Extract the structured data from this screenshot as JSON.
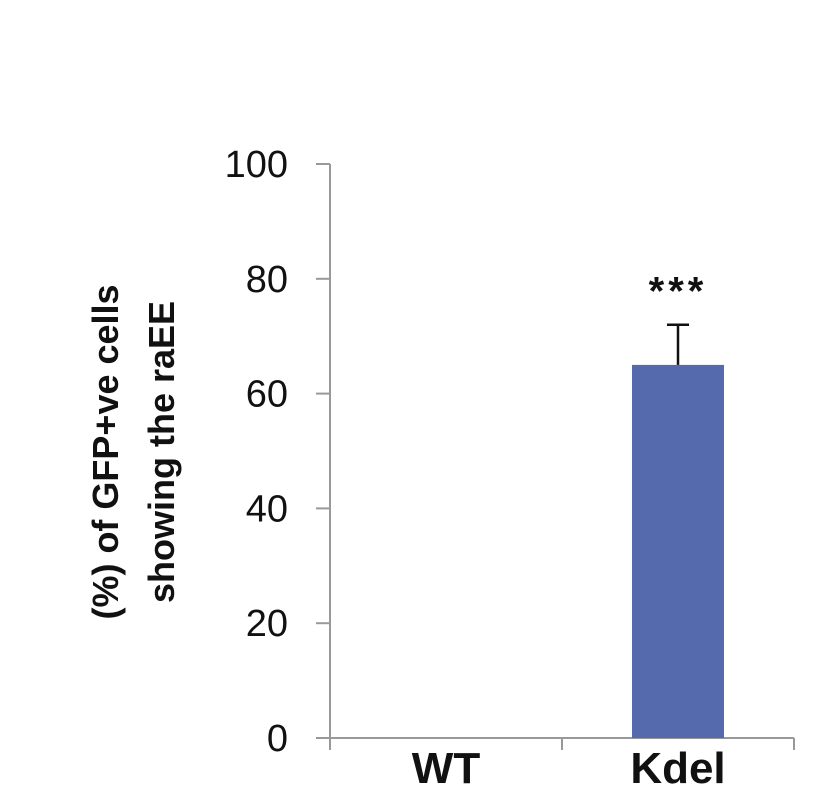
{
  "chart_data": {
    "type": "bar",
    "categories": [
      "WT",
      "Kdel"
    ],
    "values": [
      0,
      65
    ],
    "errors": [
      0,
      7
    ],
    "annotations": [
      "",
      "***"
    ],
    "ylabel_lines": [
      "(%) of GFP+ve cells",
      "showing the raEE"
    ],
    "xlabel": "",
    "ylim": [
      0,
      100
    ],
    "yticks": [
      0,
      20,
      40,
      60,
      80,
      100
    ],
    "bar_color": "#5569AD",
    "axis_color": "#999999",
    "grid": false
  }
}
